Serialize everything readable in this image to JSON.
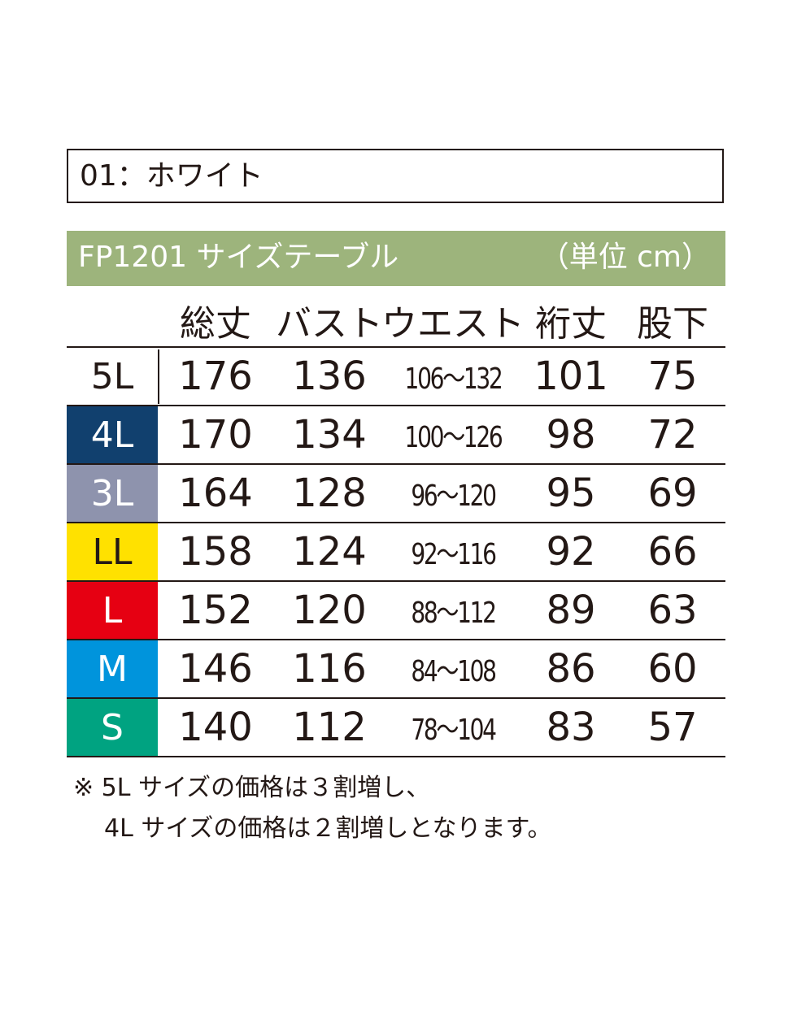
{
  "color_label": "01：ホワイト",
  "table": {
    "title": "FP1201 サイズテーブル",
    "unit": "（単位 cm）",
    "headers": [
      "総丈",
      "バスト",
      "ウエスト",
      "裄丈",
      "股下"
    ],
    "rows": [
      {
        "size": "5L",
        "color": "#ffffff",
        "text_color": "#231815",
        "values": [
          "176",
          "136",
          "106～132",
          "101",
          "75"
        ]
      },
      {
        "size": "4L",
        "color": "#11406e",
        "text_color": "#ffffff",
        "values": [
          "170",
          "134",
          "100～126",
          "98",
          "72"
        ]
      },
      {
        "size": "3L",
        "color": "#8e93ad",
        "text_color": "#ffffff",
        "values": [
          "164",
          "128",
          "96～120",
          "95",
          "69"
        ]
      },
      {
        "size": "LL",
        "color": "#ffe100",
        "text_color": "#231815",
        "values": [
          "158",
          "124",
          "92～116",
          "92",
          "66"
        ]
      },
      {
        "size": "L",
        "color": "#e60012",
        "text_color": "#ffffff",
        "values": [
          "152",
          "120",
          "88～112",
          "89",
          "63"
        ]
      },
      {
        "size": "M",
        "color": "#0094dc",
        "text_color": "#ffffff",
        "values": [
          "146",
          "116",
          "84～108",
          "86",
          "60"
        ]
      },
      {
        "size": "S",
        "color": "#00a381",
        "text_color": "#ffffff",
        "values": [
          "140",
          "112",
          "78～104",
          "83",
          "57"
        ]
      }
    ]
  },
  "notes": [
    "※ 5L サイズの価格は３割増し、",
    "4L サイズの価格は２割増しとなります。"
  ],
  "colors": {
    "title_bar": "#9db47c",
    "text": "#231815"
  }
}
